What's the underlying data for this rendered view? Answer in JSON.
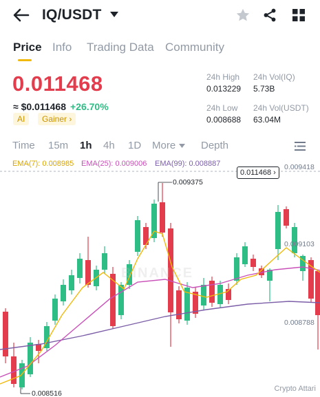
{
  "header": {
    "title": "IQ/USDT",
    "icons": [
      "back-arrow-icon",
      "caret-down-icon",
      "star-icon",
      "share-icon",
      "grid-icon"
    ]
  },
  "tabs": [
    {
      "label": "Price",
      "active": true
    },
    {
      "label": "Info",
      "active": false
    },
    {
      "label": "Trading Data",
      "active": false
    },
    {
      "label": "Community",
      "active": false
    }
  ],
  "ticker": {
    "last_price": "0.011468",
    "fiat_value": "≈ $0.011468",
    "change_pct": "+26.70%",
    "tag_ai": "AI",
    "tag_gainer": "Gainer ›",
    "colors": {
      "down": "#e33d4d",
      "up": "#2ebd85",
      "accent": "#f0b90b"
    }
  },
  "stats": {
    "high_label": "24h High",
    "high_value": "0.013229",
    "vol_iq_label": "24h Vol(IQ)",
    "vol_iq_value": "5.73B",
    "low_label": "24h Low",
    "low_value": "0.008688",
    "vol_usdt_label": "24h Vol(USDT)",
    "vol_usdt_value": "63.04M"
  },
  "intervals": {
    "items": [
      "Time",
      "15m",
      "1h",
      "4h",
      "1D",
      "More"
    ],
    "active": "1h",
    "depth": "Depth"
  },
  "chart": {
    "ema7": "EMA(7): 0.008985",
    "ema25": "EMA(25): 0.009006",
    "ema99": "EMA(99): 0.008887",
    "ema_colors": {
      "ema7": "#f0b90b",
      "ema25": "#c94fb8",
      "ema99": "#7b5ea7"
    },
    "current_price_tag": "0.011468 ›",
    "axis_top": "0.009418",
    "axis_mid": "0.009103",
    "axis_low": "0.008788",
    "high_annotation": "0.009375",
    "low_annotation": "0.008516",
    "watermark": "Crypto Attari",
    "background_mark": "BINANCE"
  }
}
